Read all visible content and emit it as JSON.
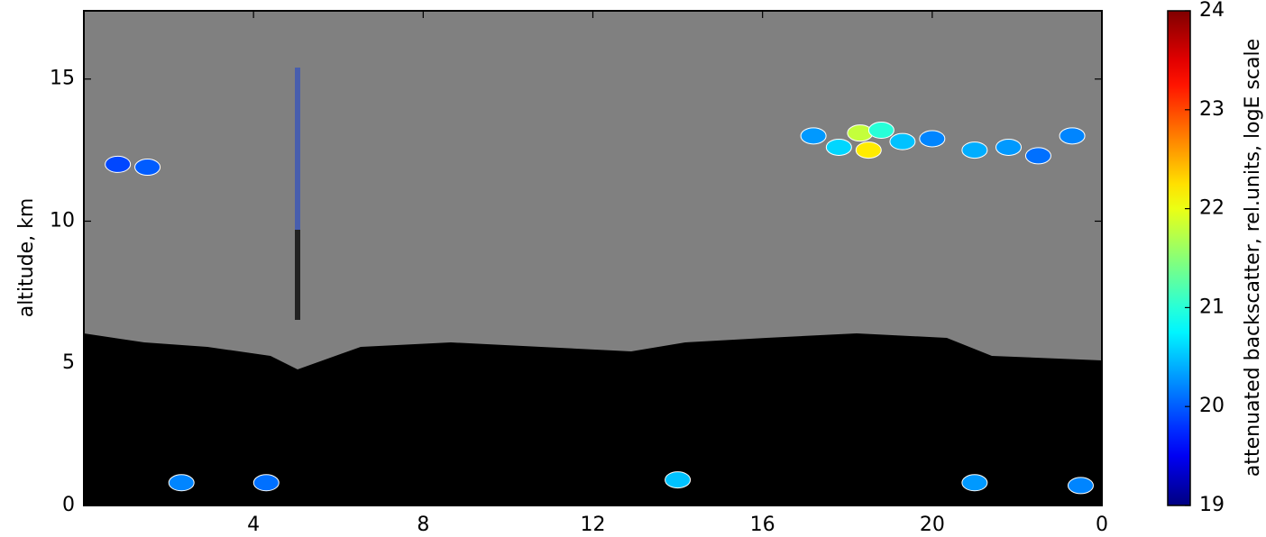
{
  "chart_data": {
    "type": "heatmap",
    "y_label": "altitude, km",
    "colorbar_label": "attenuated backscatter, rel.units, logE scale",
    "colormap": "jet",
    "xlim": [
      0,
      24
    ],
    "xticks": [
      4,
      8,
      12,
      16,
      20,
      {
        "value": 24,
        "label": "0"
      }
    ],
    "ylim": [
      0,
      17.4
    ],
    "yticks": [
      0,
      5,
      10,
      15
    ],
    "clim": [
      19,
      24
    ],
    "cticks": [
      19,
      20,
      21,
      22,
      23,
      24
    ],
    "x": [
      0.8,
      1.5,
      17.2,
      17.8,
      18.3,
      18.5,
      18.8,
      19.3,
      20.0,
      21.0,
      21.8,
      22.5,
      23.3,
      2.3,
      4.3,
      14.0,
      21.0,
      23.5
    ],
    "y": [
      12.0,
      11.9,
      13.0,
      12.6,
      13.1,
      12.5,
      13.2,
      12.8,
      12.9,
      12.5,
      12.6,
      12.3,
      13.0,
      0.8,
      0.8,
      0.9,
      0.8,
      0.7
    ],
    "values": [
      19.9,
      20.0,
      20.3,
      20.6,
      21.8,
      22.2,
      21.0,
      20.5,
      20.2,
      20.4,
      20.3,
      20.1,
      20.2,
      20.2,
      20.1,
      20.5,
      20.3,
      20.2
    ]
  }
}
